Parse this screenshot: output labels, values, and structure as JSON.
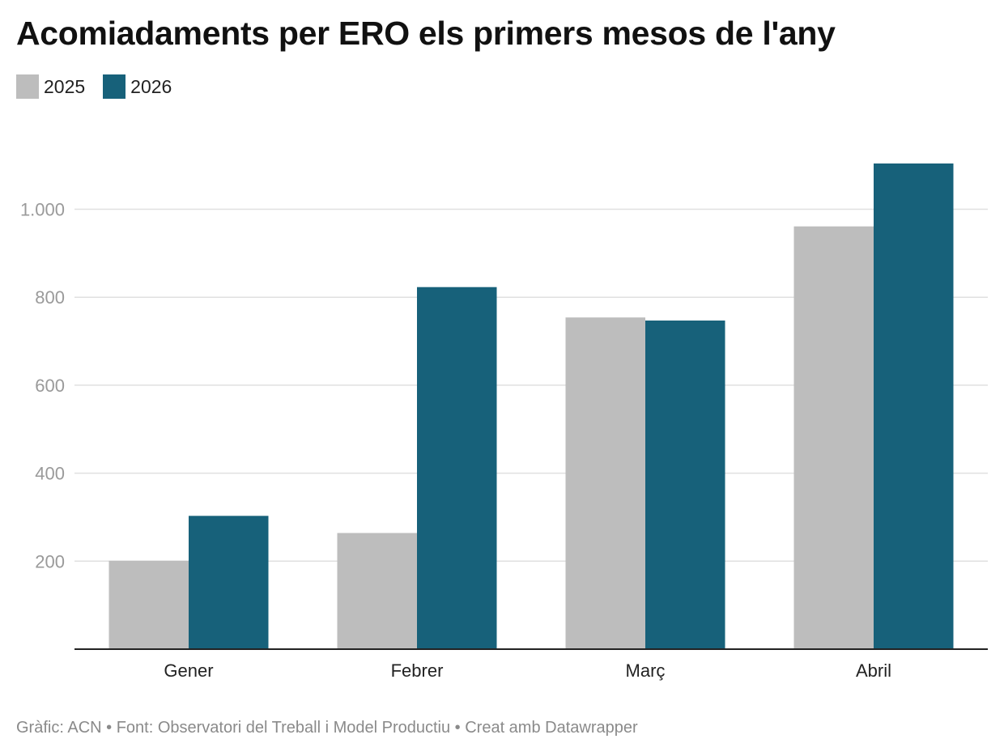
{
  "chart_data": {
    "type": "bar",
    "title": "Acomiadaments per ERO els primers mesos de l'any",
    "xlabel": "",
    "ylabel": "",
    "categories": [
      "Gener",
      "Febrer",
      "Març",
      "Abril"
    ],
    "series": [
      {
        "name": "2025",
        "color": "#bdbdbd",
        "values": [
          201,
          264,
          754,
          961
        ]
      },
      {
        "name": "2026",
        "color": "#17617a",
        "values": [
          303,
          823,
          747,
          1104
        ]
      }
    ],
    "ylim": [
      0,
      1104
    ],
    "yticks": [
      200,
      400,
      600,
      800,
      1000
    ],
    "ytick_labels": [
      "200",
      "400",
      "600",
      "800",
      "1.000"
    ],
    "grid": true,
    "legend": "top-left"
  },
  "footer": {
    "text": "Gràfic: ACN • Font: Observatori del Treball i Model Productiu • Creat amb Datawrapper"
  }
}
